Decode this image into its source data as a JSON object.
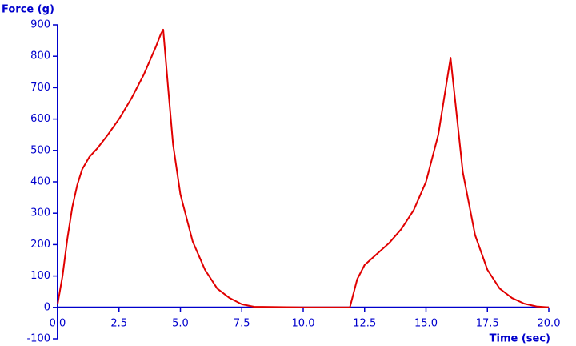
{
  "chart_data": {
    "type": "line",
    "x_label": "Time (sec)",
    "y_label": "Force (g)",
    "axis_color": "#0000cc",
    "xlim": [
      0,
      20
    ],
    "ylim": [
      -100,
      900
    ],
    "xticks": [
      {
        "value": 0,
        "label": "0.0"
      },
      2.5,
      {
        "value": 5,
        "label": "5.0"
      },
      7.5,
      {
        "value": 10,
        "label": "10.0"
      },
      12.5,
      {
        "value": 15,
        "label": "15.0"
      },
      17.5,
      {
        "value": 20,
        "label": "20.0"
      }
    ],
    "yticks": [
      -100,
      0,
      100,
      200,
      300,
      400,
      500,
      600,
      700,
      800,
      900
    ],
    "x": [
      0,
      0.2,
      0.4,
      0.6,
      0.8,
      1.0,
      1.3,
      1.6,
      2.0,
      2.5,
      3.0,
      3.5,
      4.0,
      4.2,
      4.3,
      4.5,
      4.7,
      5.0,
      5.5,
      6.0,
      6.5,
      7.0,
      7.5,
      8.0,
      10.0,
      11.9,
      12.0,
      12.2,
      12.5,
      13.0,
      13.5,
      14.0,
      14.5,
      15.0,
      15.5,
      16.0,
      16.2,
      16.5,
      17.0,
      17.5,
      18.0,
      18.5,
      19.0,
      19.5,
      20.0
    ],
    "series": [
      {
        "name": "Force",
        "color": "#e00000",
        "values": [
          10,
          100,
          220,
          320,
          390,
          440,
          480,
          505,
          545,
          600,
          665,
          740,
          830,
          870,
          885,
          700,
          520,
          360,
          210,
          120,
          60,
          30,
          10,
          2,
          0,
          0,
          30,
          90,
          135,
          170,
          205,
          250,
          310,
          400,
          550,
          795,
          650,
          430,
          230,
          120,
          60,
          30,
          12,
          3,
          0
        ]
      }
    ]
  }
}
